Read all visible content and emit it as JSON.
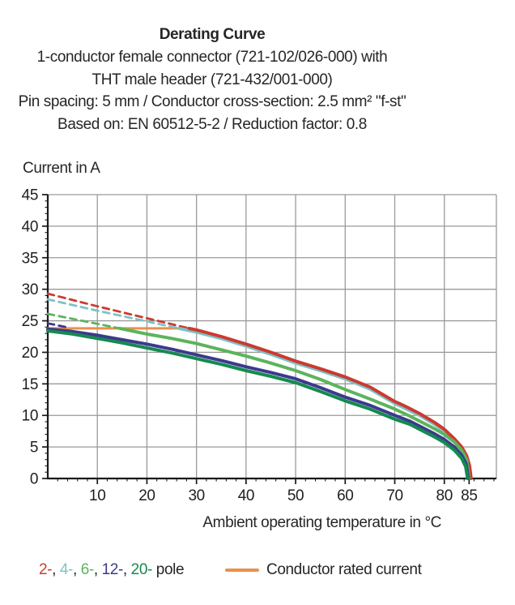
{
  "header": {
    "subtitle_lines": [
      "1-conductor female connector (721-102/026-000) with",
      "THT male header (721-432/001-000)",
      "Pin spacing: 5 mm / Conductor cross-section: 2.5 mm² \"f-st\"",
      "Based on: EN 60512-5-2 / Reduction factor: 0.8"
    ]
  },
  "chart_data": {
    "type": "line",
    "title": "Derating Curve",
    "xlabel": "Ambient operating temperature in °C",
    "ylabel": "Current in A",
    "xlim": [
      0,
      90.5
    ],
    "ylim": [
      0,
      45
    ],
    "xticks": [
      10,
      20,
      30,
      40,
      50,
      60,
      70,
      80,
      85
    ],
    "yticks": [
      0,
      5,
      10,
      15,
      20,
      25,
      30,
      35,
      40,
      45
    ],
    "x_minor_step": 2,
    "y_minor_step": 1,
    "grid": true,
    "grid_color": "#9a9a9a",
    "axis_color": "#1a1a1a",
    "series": [
      {
        "name": "conductor-rated-current",
        "color": "#e9914d",
        "dash": false,
        "width": 3,
        "points": [
          [
            0,
            23.8
          ],
          [
            29,
            23.8
          ]
        ]
      },
      {
        "name": "12-pole-unreduced",
        "color": "#3b3a8d",
        "dash": true,
        "width": 2.8,
        "points": [
          [
            0,
            24.6
          ],
          [
            4,
            23.95
          ]
        ]
      },
      {
        "name": "6-pole-unreduced",
        "color": "#5cb45c",
        "dash": true,
        "width": 2.8,
        "points": [
          [
            0,
            26.1
          ],
          [
            7,
            25.0
          ],
          [
            14.5,
            23.8
          ]
        ]
      },
      {
        "name": "4-pole-unreduced",
        "color": "#7cc3c6",
        "dash": true,
        "width": 2.8,
        "points": [
          [
            0,
            28.4
          ],
          [
            10,
            26.6
          ],
          [
            20,
            24.9
          ],
          [
            26.5,
            23.8
          ]
        ]
      },
      {
        "name": "2-pole-unreduced",
        "color": "#cc3a30",
        "dash": true,
        "width": 2.8,
        "points": [
          [
            0,
            29.3
          ],
          [
            10,
            27.3
          ],
          [
            20,
            25.4
          ],
          [
            28.5,
            23.8
          ]
        ]
      },
      {
        "name": "4-pole",
        "color": "#7cc3c6",
        "dash": false,
        "width": 4,
        "points": [
          [
            26.5,
            23.8
          ],
          [
            30,
            23.2
          ],
          [
            35,
            22.2
          ],
          [
            40,
            21.0
          ],
          [
            45,
            19.7
          ],
          [
            50,
            18.3
          ],
          [
            55,
            17.1
          ],
          [
            60,
            15.8
          ],
          [
            65,
            14.2
          ],
          [
            70,
            11.9
          ],
          [
            75,
            10.0
          ],
          [
            78,
            8.6
          ],
          [
            80,
            7.5
          ],
          [
            82,
            6.0
          ],
          [
            83.5,
            4.7
          ],
          [
            84.6,
            3.2
          ],
          [
            85.2,
            0
          ]
        ]
      },
      {
        "name": "2-pole",
        "color": "#cc3a30",
        "dash": false,
        "width": 4,
        "points": [
          [
            28.5,
            23.8
          ],
          [
            30,
            23.55
          ],
          [
            35,
            22.5
          ],
          [
            40,
            21.3
          ],
          [
            45,
            20.0
          ],
          [
            50,
            18.6
          ],
          [
            55,
            17.4
          ],
          [
            60,
            16.1
          ],
          [
            65,
            14.5
          ],
          [
            70,
            12.2
          ],
          [
            72,
            11.5
          ],
          [
            75,
            10.3
          ],
          [
            78,
            8.9
          ],
          [
            80,
            7.8
          ],
          [
            82,
            6.3
          ],
          [
            83.5,
            5.0
          ],
          [
            84.5,
            3.6
          ],
          [
            85.1,
            2.0
          ],
          [
            85.4,
            0
          ]
        ]
      },
      {
        "name": "6-pole",
        "color": "#5cb45c",
        "dash": false,
        "width": 4,
        "points": [
          [
            14.5,
            23.8
          ],
          [
            20,
            22.9
          ],
          [
            25,
            22.2
          ],
          [
            30,
            21.4
          ],
          [
            35,
            20.4
          ],
          [
            40,
            19.4
          ],
          [
            45,
            18.3
          ],
          [
            50,
            17.1
          ],
          [
            55,
            15.7
          ],
          [
            60,
            14.1
          ],
          [
            65,
            12.6
          ],
          [
            70,
            11.0
          ],
          [
            73,
            9.9
          ],
          [
            75,
            9.1
          ],
          [
            78,
            7.9
          ],
          [
            80,
            7.0
          ],
          [
            82,
            5.8
          ],
          [
            83.5,
            4.5
          ],
          [
            84.5,
            3.0
          ],
          [
            85.0,
            0
          ]
        ]
      },
      {
        "name": "12-pole",
        "color": "#3b3a8d",
        "dash": false,
        "width": 4,
        "points": [
          [
            0,
            23.7
          ],
          [
            5,
            23.3
          ],
          [
            10,
            22.7
          ],
          [
            15,
            22.0
          ],
          [
            20,
            21.3
          ],
          [
            25,
            20.5
          ],
          [
            30,
            19.6
          ],
          [
            35,
            18.7
          ],
          [
            40,
            17.7
          ],
          [
            45,
            16.8
          ],
          [
            50,
            15.8
          ],
          [
            55,
            14.4
          ],
          [
            60,
            12.9
          ],
          [
            65,
            11.6
          ],
          [
            70,
            10.0
          ],
          [
            73,
            9.1
          ],
          [
            75,
            8.3
          ],
          [
            78,
            7.1
          ],
          [
            80,
            6.2
          ],
          [
            82,
            5.0
          ],
          [
            83.5,
            3.7
          ],
          [
            84.4,
            2.3
          ],
          [
            84.85,
            0
          ]
        ]
      },
      {
        "name": "20-pole",
        "color": "#158a50",
        "dash": false,
        "width": 4,
        "points": [
          [
            0,
            23.4
          ],
          [
            5,
            22.9
          ],
          [
            10,
            22.2
          ],
          [
            15,
            21.5
          ],
          [
            20,
            20.7
          ],
          [
            25,
            19.9
          ],
          [
            30,
            19.0
          ],
          [
            35,
            18.1
          ],
          [
            40,
            17.1
          ],
          [
            45,
            16.2
          ],
          [
            50,
            15.2
          ],
          [
            55,
            13.8
          ],
          [
            60,
            12.3
          ],
          [
            65,
            11.0
          ],
          [
            70,
            9.4
          ],
          [
            73,
            8.6
          ],
          [
            75,
            7.8
          ],
          [
            78,
            6.6
          ],
          [
            80,
            5.7
          ],
          [
            82,
            4.5
          ],
          [
            83.5,
            3.2
          ],
          [
            84.3,
            1.9
          ],
          [
            84.7,
            0
          ]
        ]
      }
    ]
  },
  "legend": {
    "pole_items": [
      {
        "label": "2-",
        "color": "#cc3a30"
      },
      {
        "label": "4-",
        "color": "#7cc3c6"
      },
      {
        "label": "6-",
        "color": "#5cb45c"
      },
      {
        "label": "12-",
        "color": "#3b3a8d"
      },
      {
        "label": "20-",
        "color": "#158a50"
      }
    ],
    "separator": ", ",
    "pole_suffix": " pole",
    "rated_current_label": "Conductor rated current",
    "rated_current_color": "#e9914d"
  }
}
